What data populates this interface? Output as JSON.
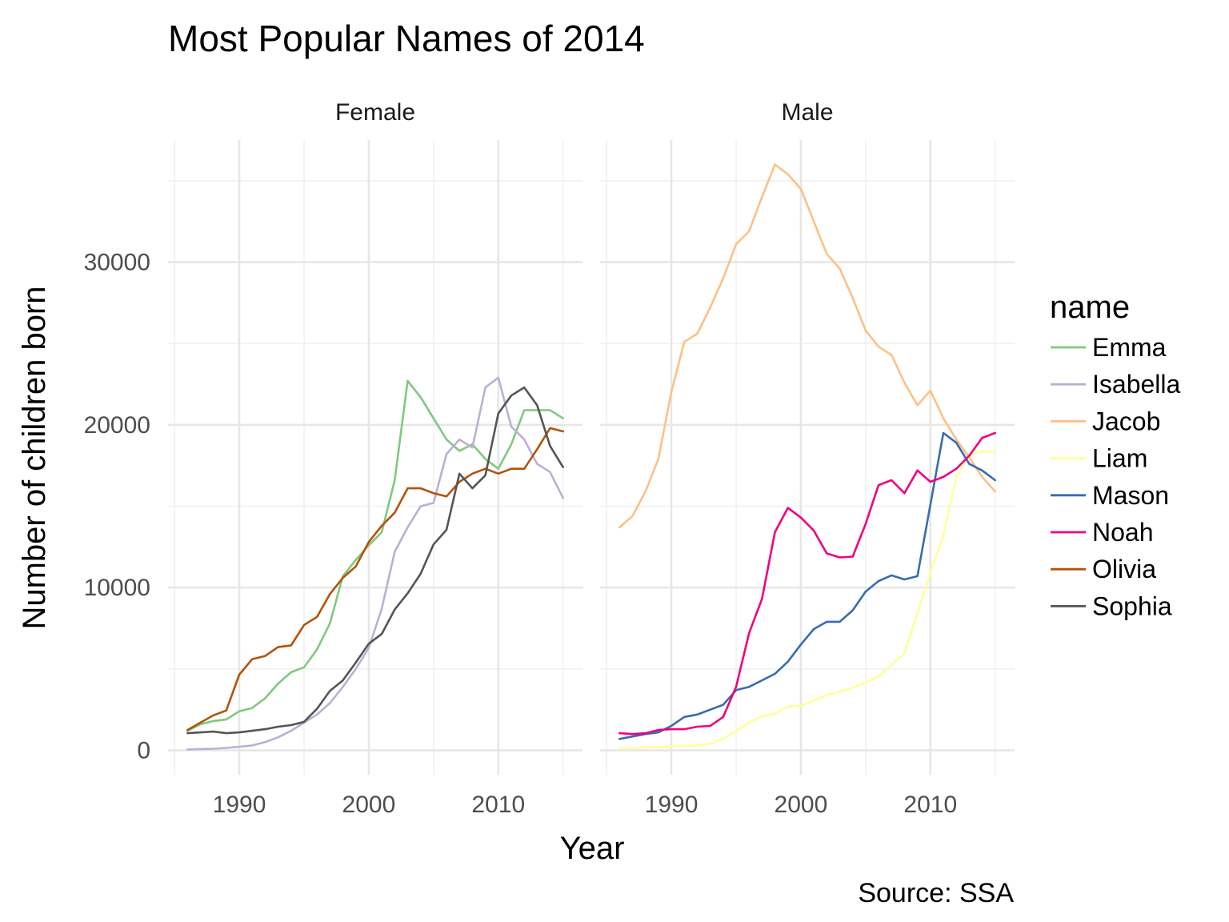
{
  "chart_data": {
    "type": "line",
    "title": "Most Popular Names of 2014",
    "xlabel": "Year",
    "ylabel": "Number of children born",
    "caption": "Source: SSA",
    "xlim": [
      1984.5,
      2016.5
    ],
    "ylim": [
      -1500,
      37500
    ],
    "x_ticks": [
      1990,
      2000,
      2010
    ],
    "y_ticks": [
      0,
      10000,
      20000,
      30000
    ],
    "grid": true,
    "legend": {
      "title": "name",
      "position": "right"
    },
    "panels": [
      {
        "label": "Female",
        "series": [
          {
            "name": "Emma",
            "color": "#7fc97f",
            "x": [
              1986,
              1987,
              1988,
              1989,
              1990,
              1991,
              1992,
              1993,
              1994,
              1995,
              1996,
              1997,
              1998,
              1999,
              2000,
              2001,
              2002,
              2003,
              2004,
              2005,
              2006,
              2007,
              2008,
              2009,
              2010,
              2011,
              2012,
              2013,
              2014,
              2015
            ],
            "y": [
              1200,
              1600,
              1800,
              1900,
              2400,
              2600,
              3200,
              4100,
              4800,
              5100,
              6200,
              7800,
              10700,
              11700,
              12600,
              13400,
              16600,
              22700,
              21700,
              20400,
              19100,
              18400,
              18800,
              17900,
              17300,
              18800,
              20900,
              20900,
              20900,
              20400
            ]
          },
          {
            "name": "Isabella",
            "color": "#beaed4",
            "x": [
              1986,
              1987,
              1988,
              1989,
              1990,
              1991,
              1992,
              1993,
              1994,
              1995,
              1996,
              1997,
              1998,
              1999,
              2000,
              2001,
              2002,
              2003,
              2004,
              2005,
              2006,
              2007,
              2008,
              2009,
              2010,
              2011,
              2012,
              2013,
              2014,
              2015
            ],
            "y": [
              50,
              80,
              100,
              150,
              220,
              300,
              500,
              800,
              1200,
              1700,
              2200,
              2900,
              3900,
              5000,
              6300,
              8700,
              12200,
              13700,
              15000,
              15200,
              18200,
              19100,
              18600,
              22300,
              22900,
              19900,
              19100,
              17600,
              17100,
              15500
            ]
          },
          {
            "name": "Olivia",
            "color": "#b5520b",
            "x": [
              1986,
              1987,
              1988,
              1989,
              1990,
              1991,
              1992,
              1993,
              1994,
              1995,
              1996,
              1997,
              1998,
              1999,
              2000,
              2001,
              2002,
              2003,
              2004,
              2005,
              2006,
              2007,
              2008,
              2009,
              2010,
              2011,
              2012,
              2013,
              2014,
              2015
            ],
            "y": [
              1250,
              1700,
              2150,
              2450,
              4650,
              5600,
              5800,
              6350,
              6450,
              7700,
              8200,
              9600,
              10600,
              11300,
              12800,
              13800,
              14600,
              16100,
              16100,
              15800,
              15600,
              16500,
              17000,
              17300,
              17000,
              17300,
              17300,
              18500,
              19800,
              19600
            ]
          },
          {
            "name": "Sophia",
            "color": "#555555",
            "x": [
              1986,
              1987,
              1988,
              1989,
              1990,
              1991,
              1992,
              1993,
              1994,
              1995,
              1996,
              1997,
              1998,
              1999,
              2000,
              2001,
              2002,
              2003,
              2004,
              2005,
              2006,
              2007,
              2008,
              2009,
              2010,
              2011,
              2012,
              2013,
              2014,
              2015
            ],
            "y": [
              1050,
              1100,
              1150,
              1050,
              1100,
              1200,
              1300,
              1450,
              1550,
              1750,
              2550,
              3650,
              4300,
              5400,
              6550,
              7150,
              8650,
              9650,
              10850,
              12650,
              13550,
              17000,
              16100,
              16900,
              20700,
              21800,
              22300,
              21200,
              18700,
              17400
            ]
          }
        ]
      },
      {
        "label": "Male",
        "series": [
          {
            "name": "Jacob",
            "color": "#fdc086",
            "x": [
              1986,
              1987,
              1988,
              1989,
              1990,
              1991,
              1992,
              1993,
              1994,
              1995,
              1996,
              1997,
              1998,
              1999,
              2000,
              2001,
              2002,
              2003,
              2004,
              2005,
              2006,
              2007,
              2008,
              2009,
              2010,
              2011,
              2012,
              2013,
              2014,
              2015
            ],
            "y": [
              13700,
              14400,
              15900,
              17900,
              22000,
              25100,
              25600,
              27200,
              29000,
              31100,
              31900,
              34000,
              36000,
              35400,
              34500,
              32500,
              30500,
              29600,
              27800,
              25800,
              24800,
              24300,
              22600,
              21200,
              22100,
              20400,
              19100,
              18000,
              16800,
              15900
            ]
          },
          {
            "name": "Liam",
            "color": "#ffff99",
            "x": [
              1986,
              1987,
              1988,
              1989,
              1990,
              1991,
              1992,
              1993,
              1994,
              1995,
              1996,
              1997,
              1998,
              1999,
              2000,
              2001,
              2002,
              2003,
              2004,
              2005,
              2006,
              2007,
              2008,
              2009,
              2010,
              2011,
              2012,
              2013,
              2014,
              2015
            ],
            "y": [
              130,
              150,
              170,
              200,
              250,
              270,
              300,
              400,
              700,
              1200,
              1700,
              2100,
              2250,
              2700,
              2750,
              3050,
              3400,
              3600,
              3850,
              4150,
              4550,
              5250,
              5950,
              8450,
              10900,
              13200,
              16800,
              18100,
              18400,
              18300
            ]
          },
          {
            "name": "Mason",
            "color": "#386cb0",
            "x": [
              1986,
              1987,
              1988,
              1989,
              1990,
              1991,
              1992,
              1993,
              1994,
              1995,
              1996,
              1997,
              1998,
              1999,
              2000,
              2001,
              2002,
              2003,
              2004,
              2005,
              2006,
              2007,
              2008,
              2009,
              2010,
              2011,
              2012,
              2013,
              2014,
              2015
            ],
            "y": [
              700,
              850,
              1000,
              1100,
              1500,
              2050,
              2200,
              2500,
              2800,
              3700,
              3900,
              4300,
              4700,
              5450,
              6500,
              7450,
              7900,
              7900,
              8600,
              9750,
              10400,
              10750,
              10500,
              10700,
              15100,
              19500,
              18900,
              17600,
              17200,
              16600
            ]
          },
          {
            "name": "Noah",
            "color": "#f0027f",
            "x": [
              1986,
              1987,
              1988,
              1989,
              1990,
              1991,
              1992,
              1993,
              1994,
              1995,
              1996,
              1997,
              1998,
              1999,
              2000,
              2001,
              2002,
              2003,
              2004,
              2005,
              2006,
              2007,
              2008,
              2009,
              2010,
              2011,
              2012,
              2013,
              2014,
              2015
            ],
            "y": [
              1050,
              1000,
              1050,
              1250,
              1300,
              1300,
              1450,
              1500,
              2050,
              3900,
              7200,
              9300,
              13400,
              14900,
              14300,
              13500,
              12100,
              11850,
              11900,
              13900,
              16300,
              16600,
              15800,
              17200,
              16500,
              16800,
              17300,
              18100,
              19200,
              19500
            ]
          }
        ]
      }
    ],
    "legend_order": [
      "Emma",
      "Isabella",
      "Jacob",
      "Liam",
      "Mason",
      "Noah",
      "Olivia",
      "Sophia"
    ],
    "colors": {
      "Emma": "#7fc97f",
      "Isabella": "#beaed4",
      "Jacob": "#fdc086",
      "Liam": "#ffff99",
      "Mason": "#386cb0",
      "Noah": "#f0027f",
      "Olivia": "#b5520b",
      "Sophia": "#555555"
    }
  }
}
